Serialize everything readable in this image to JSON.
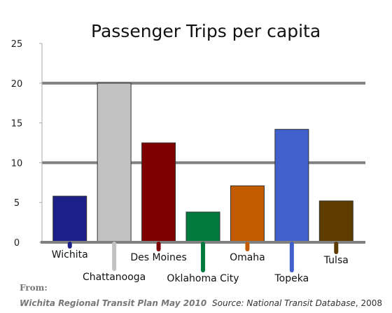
{
  "chart_data": {
    "type": "bar",
    "title": "Passenger Trips per capita",
    "categories": [
      "Wichita",
      "Chattanooga",
      "Des Moines",
      "Oklahoma City",
      "Omaha",
      "Topeka",
      "Tulsa"
    ],
    "values": [
      5.8,
      20.0,
      12.5,
      3.8,
      7.1,
      14.2,
      5.2
    ],
    "colors": [
      "#1c1f87",
      "#c2c2c2",
      "#7f0000",
      "#007a3c",
      "#c25a00",
      "#4260cc",
      "#5e3c00"
    ],
    "ylim": [
      0,
      25
    ],
    "yticks": [
      0,
      5,
      10,
      15,
      20,
      25
    ],
    "gridlines": [
      10,
      20
    ],
    "xlabel": "",
    "ylabel": "",
    "legend": "none"
  },
  "footer": {
    "from_label": "From:",
    "source_plan": "Wichita Regional Transit Plan  May 2010",
    "credit_source": "Source: National Transit Database",
    "credit_year": ", 2008"
  }
}
